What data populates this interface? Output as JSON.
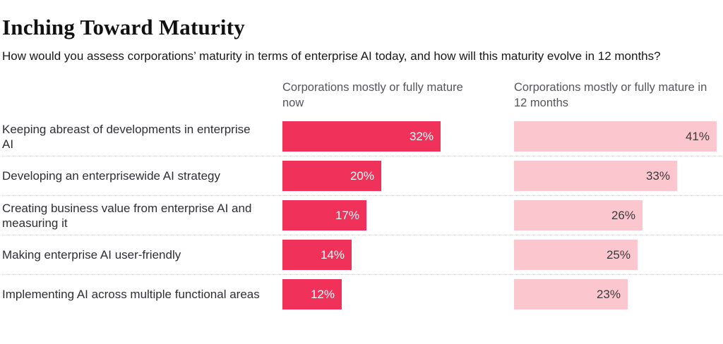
{
  "title": "Inching Toward Maturity",
  "subtitle": "How would you assess corporations’ maturity in terms of enterprise AI today, and how will this maturity evolve in 12 months?",
  "chart_data": {
    "type": "bar",
    "orientation": "horizontal",
    "value_suffix": "%",
    "value_range": [
      0,
      45
    ],
    "grid": "dotted row separators only",
    "legend_position": "column headers above each bar group",
    "categories": [
      "Keeping abreast of developments in enterprise AI",
      "Developing an enterprisewide AI strategy",
      "Creating business value from enterprise AI and measuring it",
      "Making enterprise AI user-friendly",
      "Implementing AI across multiple functional areas"
    ],
    "series": [
      {
        "name": "Corporations mostly or fully mature now",
        "values": [
          32,
          20,
          17,
          14,
          12
        ],
        "bar_color": "#f0325a",
        "value_label_color": "#ffffff"
      },
      {
        "name": "Corporations mostly or fully mature in 12 months",
        "values": [
          41,
          33,
          26,
          25,
          23
        ],
        "bar_color": "#fcc6cf",
        "value_label_color": "#3a3a3c"
      }
    ]
  }
}
